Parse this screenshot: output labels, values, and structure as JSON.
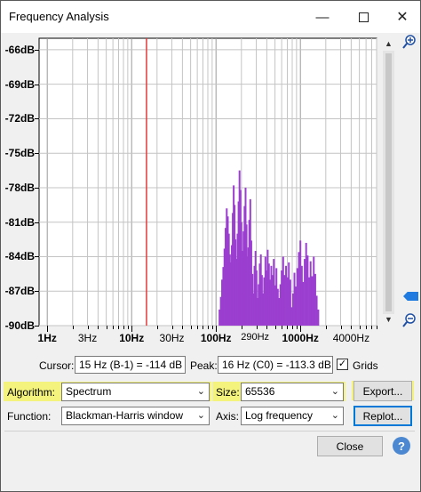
{
  "window": {
    "title": "Frequency Analysis",
    "accent": "#0078d7"
  },
  "titlebar_icons": [
    "minimize-icon",
    "maximize-icon",
    "close-icon"
  ],
  "chart_data": {
    "type": "bar",
    "x_scale": "log",
    "xlim": [
      0.8,
      8000
    ],
    "ylim": [
      -90,
      -65
    ],
    "y_ticks": [
      -66,
      -69,
      -72,
      -75,
      -78,
      -81,
      -84,
      -87,
      -90
    ],
    "y_tick_labels": [
      "-66dB",
      "-69dB",
      "-72dB",
      "-75dB",
      "-78dB",
      "-81dB",
      "-84dB",
      "-87dB",
      "-90dB"
    ],
    "x_tick_labels": [
      {
        "value": 1,
        "label": "1Hz",
        "major": true
      },
      {
        "value": 3,
        "label": "3Hz",
        "major": false
      },
      {
        "value": 10,
        "label": "10Hz",
        "major": true
      },
      {
        "value": 30,
        "label": "30Hz",
        "major": false
      },
      {
        "value": 100,
        "label": "100Hz",
        "major": true
      },
      {
        "value": 290,
        "label": "290Hz",
        "major": false,
        "small": true
      },
      {
        "value": 1000,
        "label": "1000Hz",
        "major": true
      },
      {
        "value": 4000,
        "label": "4000Hz",
        "major": false
      }
    ],
    "grid": true,
    "cursor_line_hz": 15,
    "bar_color": "#9b3fd0",
    "cursor_color": "#e23b3b",
    "spectrum": [
      [
        110,
        -88.6
      ],
      [
        114,
        -87.5
      ],
      [
        118,
        -86.0
      ],
      [
        122,
        -84.9
      ],
      [
        126,
        -83.3
      ],
      [
        130,
        -81.5
      ],
      [
        134,
        -79.8
      ],
      [
        138,
        -80.5
      ],
      [
        142,
        -82.0
      ],
      [
        146,
        -83.8
      ],
      [
        150,
        -84.5
      ],
      [
        154,
        -83.0
      ],
      [
        158,
        -80.2
      ],
      [
        162,
        -77.8
      ],
      [
        166,
        -79.5
      ],
      [
        170,
        -82.5
      ],
      [
        175,
        -84.2
      ],
      [
        180,
        -82.0
      ],
      [
        185,
        -79.2
      ],
      [
        190,
        -76.5
      ],
      [
        195,
        -78.2
      ],
      [
        200,
        -81.0
      ],
      [
        206,
        -83.5
      ],
      [
        212,
        -81.8
      ],
      [
        218,
        -79.6
      ],
      [
        224,
        -78.0
      ],
      [
        230,
        -81.2
      ],
      [
        236,
        -84.0
      ],
      [
        242,
        -83.2
      ],
      [
        248,
        -80.8
      ],
      [
        255,
        -79.0
      ],
      [
        262,
        -82.6
      ],
      [
        270,
        -85.5
      ],
      [
        278,
        -87.2
      ],
      [
        286,
        -84.8
      ],
      [
        294,
        -83.5
      ],
      [
        302,
        -85.2
      ],
      [
        310,
        -87.6
      ],
      [
        320,
        -86.4
      ],
      [
        330,
        -84.6
      ],
      [
        340,
        -83.8
      ],
      [
        350,
        -85.6
      ],
      [
        360,
        -87.2
      ],
      [
        372,
        -85.8
      ],
      [
        385,
        -84.0
      ],
      [
        398,
        -85.2
      ],
      [
        410,
        -83.4
      ],
      [
        424,
        -84.6
      ],
      [
        438,
        -86.0
      ],
      [
        452,
        -84.8
      ],
      [
        468,
        -85.6
      ],
      [
        484,
        -84.2
      ],
      [
        500,
        -86.5
      ],
      [
        520,
        -85.0
      ],
      [
        540,
        -86.8
      ],
      [
        560,
        -87.6
      ],
      [
        580,
        -86.4
      ],
      [
        600,
        -85.2
      ],
      [
        625,
        -84.0
      ],
      [
        650,
        -85.6
      ],
      [
        676,
        -84.8
      ],
      [
        703,
        -85.8
      ],
      [
        730,
        -84.5
      ],
      [
        760,
        -86.0
      ],
      [
        790,
        -88.4
      ],
      [
        820,
        -87.2
      ],
      [
        850,
        -85.4
      ],
      [
        885,
        -86.6
      ],
      [
        920,
        -85.0
      ],
      [
        960,
        -83.6
      ],
      [
        1000,
        -82.6
      ],
      [
        1040,
        -84.8
      ],
      [
        1080,
        -86.2
      ],
      [
        1125,
        -84.2
      ],
      [
        1170,
        -82.8
      ],
      [
        1220,
        -83.9
      ],
      [
        1270,
        -85.8
      ],
      [
        1320,
        -84.4
      ],
      [
        1380,
        -85.7
      ],
      [
        1440,
        -84.0
      ],
      [
        1500,
        -85.5
      ],
      [
        1560,
        -87.4
      ],
      [
        1630,
        -88.6
      ]
    ]
  },
  "controls": {
    "cursor_label": "Cursor:",
    "cursor_value": "15 Hz (B-1) = -114 dB",
    "peak_label": "Peak:",
    "peak_value": "16 Hz (C0) = -113.3 dB",
    "grids_label": "Grids",
    "grids_checked": true,
    "algorithm_label": "Algorithm:",
    "algorithm_value": "Spectrum",
    "size_label": "Size:",
    "size_value": "65536",
    "export_label": "Export...",
    "function_label": "Function:",
    "function_value": "Blackman-Harris window",
    "axis_label": "Axis:",
    "axis_value": "Log frequency",
    "replot_label": "Replot...",
    "close_label": "Close"
  },
  "highlight_color": "#f3f36a"
}
